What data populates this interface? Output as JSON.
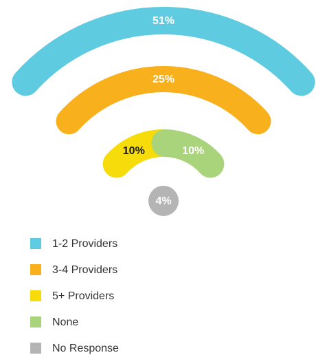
{
  "chart_data": {
    "type": "wifi",
    "categories": [
      "1-2 Providers",
      "3-4 Providers",
      "5+ Providers",
      "None",
      "No Response"
    ],
    "values": [
      51,
      25,
      10,
      10,
      4
    ],
    "value_labels": [
      "51%",
      "25%",
      "10%",
      "10%",
      "4%"
    ],
    "colors": [
      "#5ecbe0",
      "#f8b01c",
      "#f6dc0b",
      "#a9d47c",
      "#b4b4b4"
    ],
    "label_colors": [
      "#ffffff",
      "#ffffff",
      "#1a1a1a",
      "#ffffff",
      "#ffffff"
    ]
  }
}
